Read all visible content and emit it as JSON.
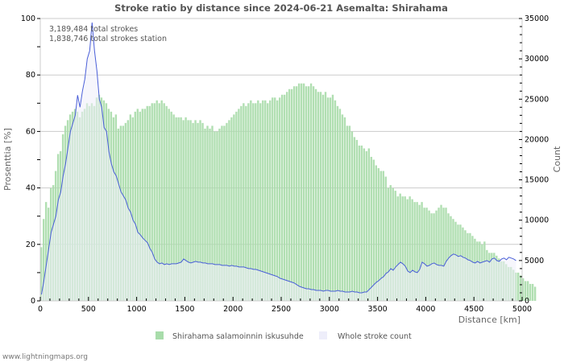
{
  "colors": {
    "ratio_bar": "#a8dcaa",
    "count_fill": "#eeeefa",
    "count_line": "#4a5fd8",
    "grid": "#cccccc",
    "title": "#555555"
  },
  "credit": "www.lightningmaps.org",
  "chart_data": {
    "type": "bar",
    "title": "Stroke ratio by distance since 2024-06-21 Asemalta: Shirahama",
    "xlabel": "Distance   [km]",
    "ylabel": "Prosenttia   [%]",
    "y2label": "Count",
    "xlim": [
      0,
      5000
    ],
    "ylim": [
      0,
      100
    ],
    "y2lim": [
      0,
      35000
    ],
    "grid": true,
    "x_ticks": [
      "0",
      "500",
      "1000",
      "1500",
      "2000",
      "2500",
      "3000",
      "3500",
      "4000",
      "4500",
      "5000"
    ],
    "y_ticks": [
      "0",
      "20",
      "40",
      "60",
      "80",
      "100"
    ],
    "y2_ticks": [
      "0",
      "5000",
      "10000",
      "15000",
      "20000",
      "25000",
      "30000",
      "35000"
    ],
    "annotations": [
      "3,189,484 total strokes",
      "1,838,746 total strokes station"
    ],
    "legend_position": "bottom-center",
    "bin_km": 25,
    "series": [
      {
        "name": "Shirahama salamoinnin iskusuhde",
        "type": "bar",
        "axis": "left",
        "values": [
          19,
          29,
          35,
          33,
          40,
          41,
          46,
          52,
          53,
          59,
          62,
          64,
          66,
          67,
          68,
          67,
          65,
          67,
          68,
          70,
          69,
          70,
          69,
          72,
          73,
          72,
          71,
          70,
          68,
          67,
          65,
          66,
          61,
          62,
          62,
          63,
          64,
          66,
          65,
          67,
          68,
          67,
          68,
          68,
          69,
          69,
          70,
          70,
          71,
          70,
          71,
          70,
          69,
          68,
          67,
          66,
          65,
          65,
          65,
          64,
          65,
          64,
          64,
          63,
          64,
          63,
          64,
          63,
          61,
          62,
          61,
          62,
          60,
          60,
          61,
          62,
          62,
          63,
          64,
          65,
          66,
          67,
          68,
          69,
          70,
          69,
          70,
          71,
          70,
          70,
          71,
          70,
          71,
          71,
          70,
          71,
          72,
          72,
          71,
          72,
          73,
          73,
          74,
          75,
          75,
          76,
          76,
          77,
          77,
          77,
          76,
          76,
          77,
          76,
          75,
          74,
          74,
          73,
          74,
          72,
          72,
          73,
          71,
          69,
          68,
          66,
          65,
          62,
          62,
          60,
          58,
          57,
          55,
          55,
          54,
          53,
          54,
          51,
          50,
          48,
          47,
          46,
          46,
          44,
          40,
          41,
          40,
          39,
          37,
          38,
          37,
          37,
          36,
          37,
          36,
          35,
          35,
          34,
          35,
          33,
          33,
          32,
          31,
          31,
          32,
          33,
          34,
          33,
          33,
          31,
          30,
          29,
          28,
          27,
          27,
          26,
          25,
          24,
          24,
          23,
          22,
          21,
          21,
          20,
          21,
          18,
          17,
          17,
          17,
          16,
          15,
          14,
          14,
          13,
          12,
          12,
          11,
          10,
          10,
          9,
          8,
          7,
          7,
          6,
          6,
          5
        ]
      },
      {
        "name": "Whole stroke count",
        "type": "area",
        "axis": "right",
        "values": [
          800,
          2500,
          4500,
          6500,
          8500,
          9500,
          10500,
          12500,
          13500,
          15500,
          17000,
          19000,
          21000,
          22000,
          23000,
          25500,
          24000,
          26000,
          27500,
          30000,
          31000,
          34500,
          31000,
          28500,
          25000,
          24000,
          21500,
          21000,
          18500,
          17000,
          16000,
          15500,
          14500,
          13500,
          13000,
          12500,
          11500,
          11000,
          10000,
          9500,
          8500,
          8200,
          7800,
          7500,
          7200,
          6500,
          6000,
          5200,
          4800,
          4600,
          4700,
          4500,
          4600,
          4500,
          4600,
          4600,
          4600,
          4700,
          4800,
          5200,
          5000,
          4800,
          4700,
          4800,
          4900,
          4800,
          4800,
          4700,
          4700,
          4600,
          4600,
          4600,
          4500,
          4500,
          4500,
          4400,
          4400,
          4400,
          4300,
          4400,
          4300,
          4300,
          4200,
          4200,
          4200,
          4100,
          4000,
          4000,
          3900,
          3900,
          3800,
          3700,
          3600,
          3500,
          3400,
          3300,
          3200,
          3100,
          3000,
          2800,
          2700,
          2600,
          2500,
          2400,
          2300,
          2200,
          2000,
          1800,
          1700,
          1600,
          1500,
          1500,
          1400,
          1400,
          1300,
          1300,
          1300,
          1200,
          1300,
          1300,
          1200,
          1200,
          1200,
          1300,
          1200,
          1200,
          1100,
          1100,
          1100,
          1200,
          1100,
          1100,
          1000,
          1000,
          1100,
          1100,
          1400,
          1700,
          2000,
          2300,
          2500,
          2800,
          3000,
          3400,
          3600,
          4000,
          3800,
          4200,
          4500,
          4800,
          4600,
          4300,
          3700,
          3500,
          3800,
          3600,
          3500,
          3900,
          4800,
          4600,
          4300,
          4400,
          4600,
          4700,
          4500,
          4400,
          4400,
          4300,
          4900,
          5300,
          5600,
          5800,
          5700,
          5500,
          5600,
          5400,
          5300,
          5100,
          5000,
          4800,
          4700,
          4900,
          4700,
          4800,
          4900,
          5000,
          4800,
          5200,
          5300,
          5000,
          4900,
          5200,
          5300,
          5100,
          5400,
          5300,
          5200,
          5000
        ]
      }
    ]
  }
}
